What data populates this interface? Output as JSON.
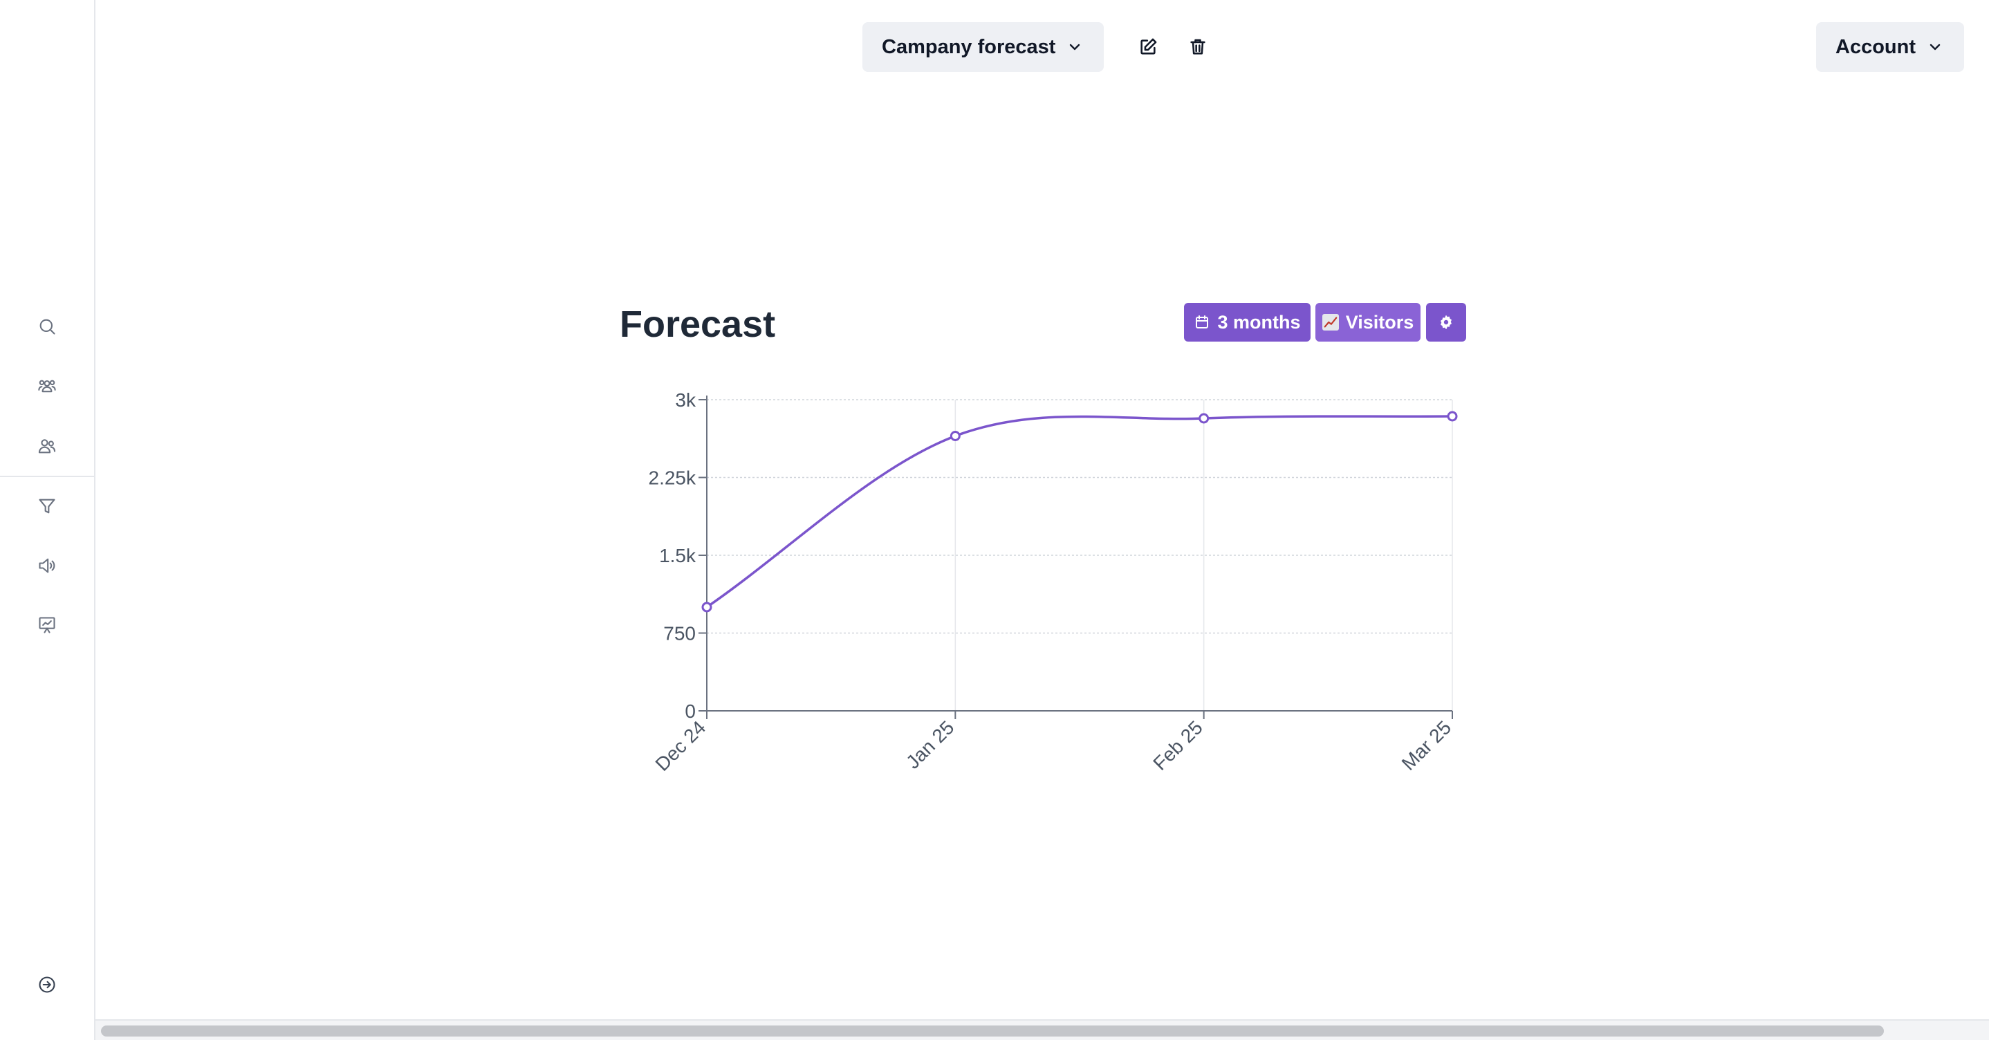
{
  "header": {
    "forecast_select_label": "Campany forecast",
    "account_label": "Account"
  },
  "sidebar": {
    "icons": [
      "search-icon",
      "groups-icon",
      "users-icon",
      "filter-icon",
      "megaphone-icon",
      "presentation-chart-icon"
    ],
    "bottom_icon": "arrow-right-circle-icon"
  },
  "panel": {
    "title": "Forecast",
    "range_label": "3 months",
    "metric_label": "Visitors",
    "accent": "#7b55cc"
  },
  "chart_data": {
    "type": "line",
    "title": "",
    "xlabel": "",
    "ylabel": "",
    "categories": [
      "Dec 24",
      "Jan 25",
      "Feb 25",
      "Mar 25"
    ],
    "series": [
      {
        "values": [
          1000,
          2650,
          2820,
          2840
        ],
        "color": "#7b55cc"
      }
    ],
    "ylim": [
      0,
      3000
    ],
    "y_ticks": [
      0,
      750,
      1500,
      2250,
      3000
    ],
    "y_tick_labels": [
      "0",
      "750",
      "1.5k",
      "2.25k",
      "3k"
    ],
    "grid": true,
    "legend": "none"
  }
}
